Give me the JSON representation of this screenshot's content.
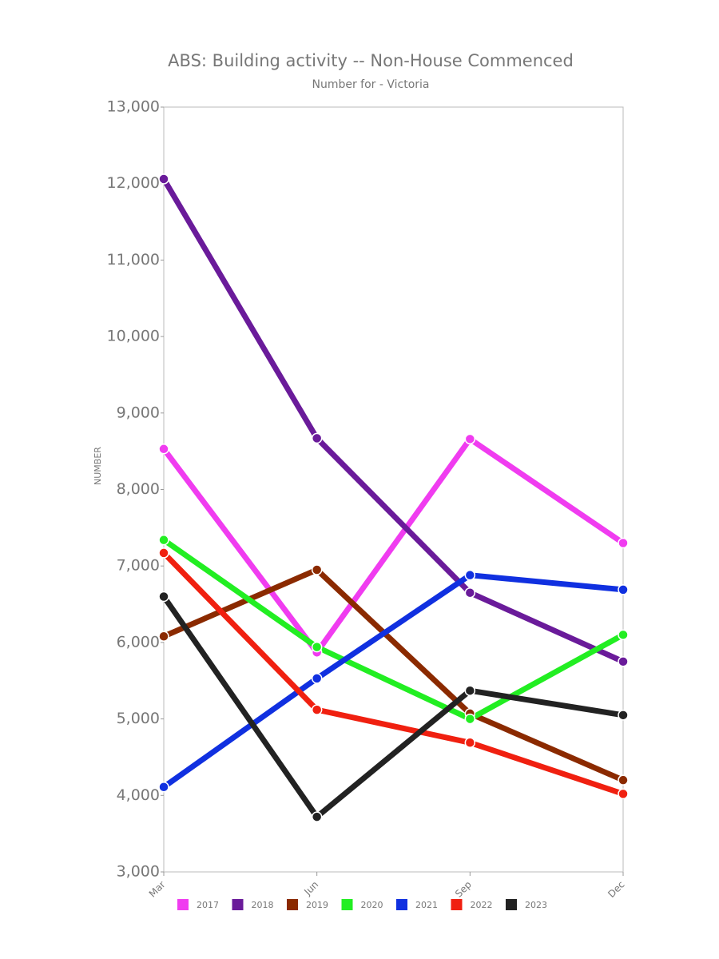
{
  "chart_data": {
    "type": "line",
    "title": "ABS: Building activity -- Non-House Commenced",
    "subtitle": "Number for - Victoria",
    "y_label": "NUMBER",
    "categories": [
      "Mar",
      "Jun",
      "Sep",
      "Dec"
    ],
    "series": [
      {
        "name": "2017",
        "color": "#f03cf0",
        "values": [
          8530,
          5870,
          8660,
          7300
        ]
      },
      {
        "name": "2018",
        "color": "#6a1b9a",
        "values": [
          12060,
          8670,
          6650,
          5750
        ]
      },
      {
        "name": "2019",
        "color": "#8b2a00",
        "values": [
          6080,
          6950,
          5070,
          4200
        ]
      },
      {
        "name": "2020",
        "color": "#22ee22",
        "values": [
          7340,
          5940,
          5000,
          6100
        ]
      },
      {
        "name": "2021",
        "color": "#1030e0",
        "values": [
          4110,
          5530,
          6880,
          6690
        ]
      },
      {
        "name": "2022",
        "color": "#f02010",
        "values": [
          7170,
          5120,
          4690,
          4020
        ]
      },
      {
        "name": "2023",
        "color": "#222222",
        "values": [
          6600,
          3720,
          5370,
          5050
        ]
      }
    ],
    "ylim": [
      3000,
      13000
    ],
    "yticks": [
      {
        "value": 3000,
        "label": "3,000"
      },
      {
        "value": 4000,
        "label": "4,000"
      },
      {
        "value": 5000,
        "label": "5,000"
      },
      {
        "value": 6000,
        "label": "6,000"
      },
      {
        "value": 7000,
        "label": "7,000"
      },
      {
        "value": 8000,
        "label": "8,000"
      },
      {
        "value": 9000,
        "label": "9,000"
      },
      {
        "value": 10000,
        "label": "10,000"
      },
      {
        "value": 11000,
        "label": "11,000"
      },
      {
        "value": 12000,
        "label": "12,000"
      },
      {
        "value": 13000,
        "label": "13,000"
      }
    ],
    "legend": "bottom"
  }
}
